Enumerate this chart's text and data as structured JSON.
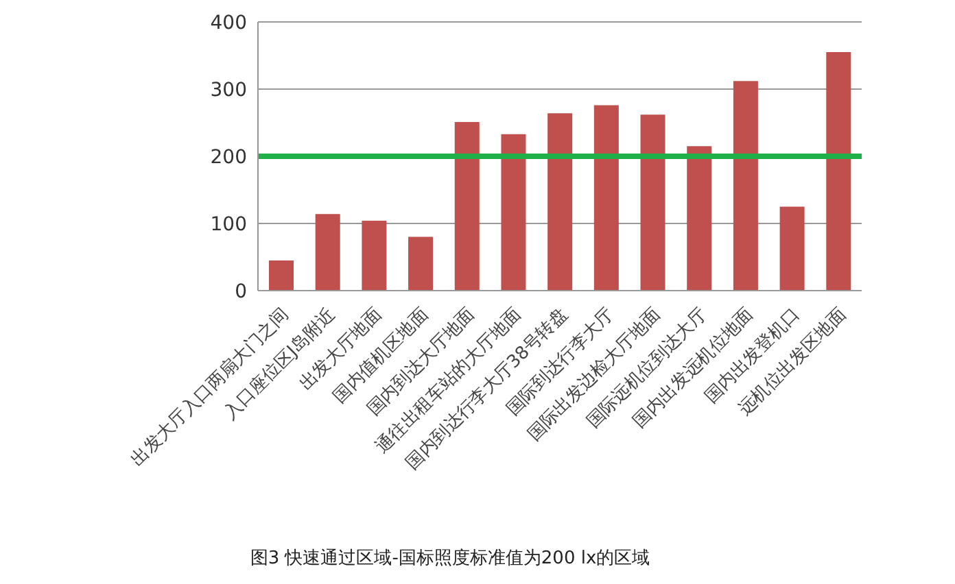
{
  "chart_data": {
    "type": "bar",
    "categories": [
      "出发大厅入口两扇大门之间",
      "入口座位区J岛附近",
      "出发大厅地面",
      "国内值机区地面",
      "国内到达大厅地面",
      "通往出租车站的大厅地面",
      "国内到达行李大厅38号转盘",
      "国际到达行李大厅",
      "国际出发边检大厅地面",
      "国际远机位到达大厅",
      "国内出发远机位地面",
      "国内出发登机口",
      "远机位出发区地面"
    ],
    "values": [
      45,
      114,
      104,
      80,
      251,
      233,
      264,
      276,
      262,
      215,
      312,
      125,
      355
    ],
    "color": "#c0504d",
    "ylim": [
      0,
      400
    ],
    "yticks": [
      0,
      100,
      200,
      300,
      400
    ],
    "grid": "y",
    "ref_lines": [
      {
        "axis": "y",
        "value": 200,
        "color": "#1fb04a"
      }
    ],
    "annotations": [
      "图3 快速通过区域-国标照度标准值为200 lx的区域"
    ]
  }
}
